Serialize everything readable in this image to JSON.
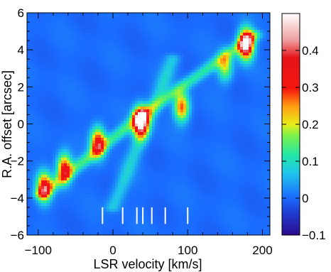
{
  "chart_data": {
    "type": "heatmap",
    "title": "",
    "xlabel": "LSR velocity [km/s]",
    "ylabel": "R.A. offset [arcsec]",
    "xlim": [
      -115,
      210
    ],
    "ylim": [
      -6,
      6
    ],
    "x_ticks": [
      "−100",
      "0",
      "100",
      "200"
    ],
    "x_tick_values": [
      -100,
      0,
      100,
      200
    ],
    "y_ticks": [
      "−4",
      "−2",
      "0",
      "2",
      "4",
      "6"
    ],
    "y_tick_values": [
      -4,
      -2,
      0,
      2,
      4,
      6
    ],
    "y_bottom_label": "−6",
    "colorbar": {
      "range": [
        -0.1,
        0.5
      ],
      "ticks": [
        "−0.1",
        "0",
        "0.1",
        "0.2",
        "0.3",
        "0.4"
      ],
      "tick_values": [
        -0.1,
        0,
        0.1,
        0.2,
        0.3,
        0.4
      ],
      "colormap": "rainbow-white"
    },
    "background_level": 0.0,
    "emission_peaks": [
      {
        "x": -92,
        "y": -3.4,
        "value": 0.33
      },
      {
        "x": -65,
        "y": -2.4,
        "value": 0.32
      },
      {
        "x": -20,
        "y": -1.0,
        "value": 0.34
      },
      {
        "x": 37,
        "y": 0.1,
        "value": 0.5
      },
      {
        "x": 92,
        "y": 0.9,
        "value": 0.28
      },
      {
        "x": 150,
        "y": 3.1,
        "value": 0.2
      },
      {
        "x": 178,
        "y": 4.3,
        "value": 0.5
      }
    ],
    "emission_ridges": [
      {
        "from": [
          -95,
          -3.8
        ],
        "to": [
          40,
          0.5
        ],
        "value": 0.13
      },
      {
        "from": [
          40,
          0.5
        ],
        "to": [
          190,
          4.8
        ],
        "value": 0.12
      },
      {
        "from": [
          0,
          -4.5
        ],
        "to": [
          80,
          3.5
        ],
        "value": 0.08
      }
    ],
    "marker_velocities": [
      -14,
      13,
      32,
      40,
      52,
      70,
      100
    ]
  }
}
